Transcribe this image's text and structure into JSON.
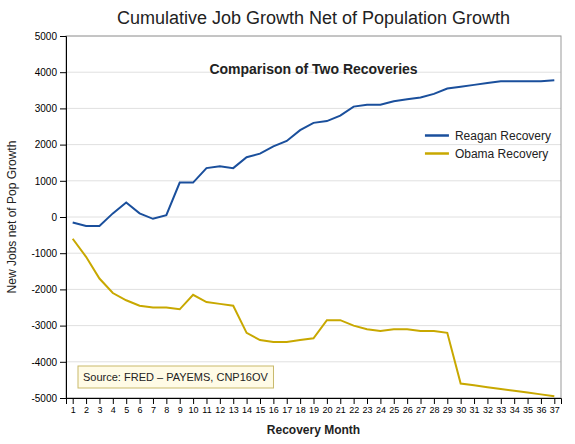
{
  "chart_data": {
    "type": "line",
    "title": "Cumulative Job Growth Net of Population Growth",
    "subtitle": "Comparison of Two Recoveries",
    "x_label": "Recovery Month",
    "y_label": "New Jobs net of Pop Growth",
    "annotations": [
      "Source: FRED – PAYEMS, CNP16OV"
    ],
    "x": [
      1,
      2,
      3,
      4,
      5,
      6,
      7,
      8,
      9,
      10,
      11,
      12,
      13,
      14,
      15,
      16,
      17,
      18,
      19,
      20,
      21,
      22,
      23,
      24,
      25,
      26,
      27,
      28,
      29,
      30,
      31,
      32,
      33,
      34,
      35,
      36,
      37
    ],
    "xlim": [
      0.5,
      37.5
    ],
    "xticks": [
      1,
      2,
      3,
      4,
      5,
      6,
      7,
      8,
      9,
      10,
      11,
      12,
      13,
      14,
      15,
      16,
      17,
      18,
      19,
      20,
      21,
      22,
      23,
      24,
      25,
      26,
      27,
      28,
      29,
      30,
      31,
      32,
      33,
      34,
      35,
      36,
      37
    ],
    "ylim": [
      -5000,
      5000
    ],
    "yticks": [
      -5000,
      -4000,
      -3000,
      -2000,
      -1000,
      0,
      1000,
      2000,
      3000,
      4000,
      5000
    ],
    "grid": "y",
    "legend": "upper right",
    "series": [
      {
        "name": "Reagan Recovery",
        "color": "#1a4f9c",
        "values": [
          -150,
          -250,
          -250,
          100,
          400,
          100,
          -50,
          50,
          950,
          950,
          1350,
          1400,
          1350,
          1650,
          1750,
          1950,
          2100,
          2400,
          2600,
          2650,
          2800,
          3050,
          3100,
          3100,
          3200,
          3250,
          3300,
          3400,
          3550,
          3600,
          3650,
          3700,
          3750,
          3750,
          3750,
          3750,
          3780
        ]
      },
      {
        "name": "Obama Recovery",
        "color": "#c8a800",
        "values": [
          -600,
          -1100,
          -1700,
          -2100,
          -2300,
          -2450,
          -2500,
          -2500,
          -2550,
          -2150,
          -2350,
          -2400,
          -2450,
          -3200,
          -3400,
          -3450,
          -3450,
          -3400,
          -3350,
          -2850,
          -2850,
          -3000,
          -3100,
          -3150,
          -3100,
          -3100,
          -3150,
          -3150,
          -3200,
          -4600,
          -4650,
          -4700,
          -4750,
          -4800,
          -4850,
          -4900,
          -4950
        ]
      }
    ]
  }
}
